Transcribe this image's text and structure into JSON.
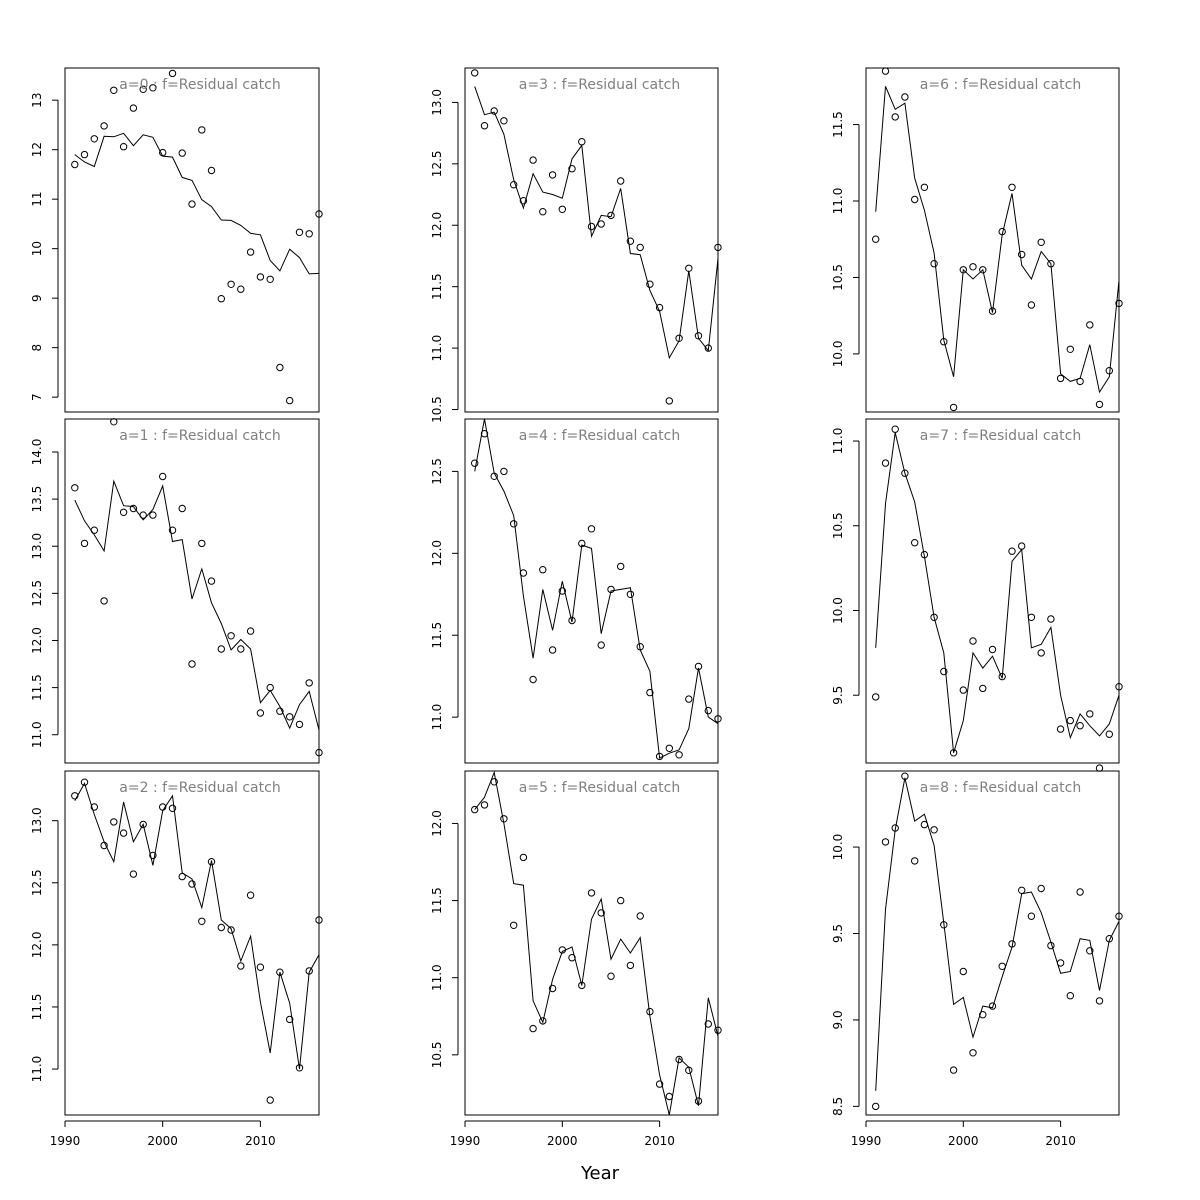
{
  "figure": {
    "xlabel": "Year"
  },
  "chart_data": [
    {
      "type": "line",
      "title": "a=0  :  f=Residual catch",
      "xlim": [
        1990,
        2016
      ],
      "ylim": [
        6.7,
        13.65
      ],
      "yticks": [
        7,
        8,
        9,
        10,
        11,
        12,
        13
      ],
      "x_start": 1991,
      "observed": [
        11.7,
        11.9,
        12.22,
        12.48,
        13.2,
        12.06,
        12.84,
        13.22,
        13.25,
        11.94,
        13.54,
        11.93,
        10.9,
        12.4,
        11.58,
        8.99,
        9.28,
        9.18,
        9.93,
        9.43,
        9.38,
        7.6,
        6.93,
        10.33,
        10.3,
        10.7
      ],
      "fitted": [
        11.9,
        11.75,
        11.66,
        12.27,
        12.26,
        12.33,
        12.08,
        12.3,
        12.25,
        11.87,
        11.85,
        11.44,
        11.38,
        10.99,
        10.85,
        10.58,
        10.57,
        10.47,
        10.31,
        10.28,
        9.76,
        9.55,
        9.99,
        9.82,
        9.49,
        9.5
      ]
    },
    {
      "type": "line",
      "title": "a=3  :  f=Residual catch",
      "xlim": [
        1990,
        2016
      ],
      "ylim": [
        10.48,
        13.28
      ],
      "yticks": [
        10.5,
        11.0,
        11.5,
        12.0,
        12.5,
        13.0
      ],
      "x_start": 1991,
      "observed": [
        13.24,
        12.81,
        12.93,
        12.85,
        12.33,
        12.2,
        12.53,
        12.11,
        12.41,
        12.13,
        12.46,
        12.68,
        11.99,
        12.01,
        12.08,
        12.36,
        11.87,
        11.82,
        11.52,
        11.33,
        10.57,
        11.08,
        11.65,
        11.1,
        11.0,
        11.82
      ],
      "fitted": [
        13.13,
        12.9,
        12.92,
        12.74,
        12.37,
        12.14,
        12.42,
        12.27,
        12.25,
        12.22,
        12.54,
        12.65,
        11.91,
        12.08,
        12.07,
        12.3,
        11.77,
        11.76,
        11.47,
        11.3,
        10.92,
        11.06,
        11.63,
        11.08,
        10.98,
        11.73
      ]
    },
    {
      "type": "line",
      "title": "a=6  :  f=Residual catch",
      "xlim": [
        1990,
        2016
      ],
      "ylim": [
        9.62,
        11.87
      ],
      "yticks": [
        10.0,
        10.5,
        11.0,
        11.5
      ],
      "x_start": 1991,
      "observed": [
        10.75,
        11.85,
        11.55,
        11.68,
        11.01,
        11.09,
        10.59,
        10.08,
        9.65,
        10.55,
        10.57,
        10.55,
        10.28,
        10.8,
        11.09,
        10.65,
        10.32,
        10.73,
        10.59,
        9.84,
        10.03,
        9.82,
        10.19,
        9.67,
        9.89,
        10.33
      ],
      "fitted": [
        10.93,
        11.75,
        11.6,
        11.64,
        11.15,
        10.94,
        10.66,
        10.09,
        9.85,
        10.55,
        10.49,
        10.55,
        10.27,
        10.78,
        11.05,
        10.58,
        10.49,
        10.67,
        10.59,
        9.87,
        9.82,
        9.84,
        10.06,
        9.75,
        9.85,
        10.48
      ]
    },
    {
      "type": "line",
      "title": "a=1  :  f=Residual catch",
      "xlim": [
        1990,
        2016
      ],
      "ylim": [
        10.7,
        14.35
      ],
      "yticks": [
        11.0,
        11.5,
        12.0,
        12.5,
        13.0,
        13.5,
        14.0
      ],
      "x_start": 1991,
      "observed": [
        13.62,
        13.03,
        13.17,
        12.42,
        14.32,
        13.36,
        13.4,
        13.33,
        13.33,
        13.74,
        13.17,
        13.4,
        11.75,
        13.03,
        12.63,
        11.91,
        12.05,
        11.91,
        12.1,
        11.23,
        11.5,
        11.25,
        11.19,
        11.11,
        11.55,
        10.81
      ],
      "fitted": [
        13.49,
        13.27,
        13.12,
        12.95,
        13.69,
        13.43,
        13.42,
        13.28,
        13.39,
        13.64,
        13.05,
        13.07,
        12.44,
        12.76,
        12.4,
        12.18,
        11.9,
        12.01,
        11.91,
        11.34,
        11.47,
        11.3,
        11.07,
        11.32,
        11.46,
        11.05
      ]
    },
    {
      "type": "line",
      "title": "a=4  :  f=Residual catch",
      "xlim": [
        1990,
        2016
      ],
      "ylim": [
        10.72,
        12.82
      ],
      "yticks": [
        11.0,
        11.5,
        12.0,
        12.5
      ],
      "x_start": 1991,
      "observed": [
        12.55,
        12.73,
        12.47,
        12.5,
        12.18,
        11.88,
        11.23,
        11.9,
        11.41,
        11.77,
        11.59,
        12.06,
        12.15,
        11.44,
        11.78,
        11.92,
        11.75,
        11.43,
        11.15,
        10.76,
        10.81,
        10.77,
        11.11,
        11.31,
        11.04,
        10.99
      ],
      "fitted": [
        12.5,
        12.82,
        12.49,
        12.38,
        12.23,
        11.74,
        11.36,
        11.78,
        11.53,
        11.83,
        11.58,
        12.05,
        12.03,
        11.51,
        11.77,
        11.78,
        11.79,
        11.41,
        11.28,
        10.75,
        10.78,
        10.8,
        10.93,
        11.3,
        11.0,
        10.96
      ]
    },
    {
      "type": "line",
      "title": "a=7  :  f=Residual catch",
      "xlim": [
        1990,
        2016
      ],
      "ylim": [
        9.1,
        11.13
      ],
      "yticks": [
        9.5,
        10.0,
        10.5,
        11.0
      ],
      "x_start": 1991,
      "observed": [
        9.49,
        10.87,
        11.07,
        10.81,
        10.4,
        10.33,
        9.96,
        9.64,
        9.16,
        9.53,
        9.82,
        9.54,
        9.77,
        9.61,
        10.35,
        10.38,
        9.96,
        9.75,
        9.95,
        9.3,
        9.35,
        9.32,
        9.39,
        9.07,
        9.27,
        9.55
      ],
      "fitted": [
        9.78,
        10.63,
        11.05,
        10.81,
        10.64,
        10.32,
        9.96,
        9.75,
        9.16,
        9.35,
        9.75,
        9.66,
        9.73,
        9.6,
        10.29,
        10.36,
        9.78,
        9.8,
        9.9,
        9.5,
        9.25,
        9.39,
        9.32,
        9.26,
        9.33,
        9.5
      ]
    },
    {
      "type": "line",
      "title": "a=2  :  f=Residual catch",
      "xlim": [
        1990,
        2016
      ],
      "ylim": [
        10.63,
        13.4
      ],
      "yticks": [
        11.0,
        11.5,
        12.0,
        12.5,
        13.0
      ],
      "x_start": 1991,
      "observed": [
        13.2,
        13.31,
        13.11,
        12.8,
        12.99,
        12.9,
        12.57,
        12.97,
        12.72,
        13.11,
        13.1,
        12.55,
        12.49,
        12.19,
        12.67,
        12.14,
        12.12,
        11.83,
        12.4,
        11.82,
        10.75,
        11.78,
        11.4,
        11.01,
        11.79,
        12.2
      ],
      "fitted": [
        13.16,
        13.3,
        13.05,
        12.83,
        12.67,
        13.15,
        12.83,
        12.97,
        12.64,
        13.08,
        13.2,
        12.58,
        12.53,
        12.3,
        12.68,
        12.2,
        12.13,
        11.87,
        12.07,
        11.54,
        11.13,
        11.78,
        11.53,
        11.0,
        11.78,
        11.92
      ]
    },
    {
      "type": "line",
      "title": "a=5  :  f=Residual catch",
      "xlim": [
        1990,
        2016
      ],
      "ylim": [
        10.11,
        12.34
      ],
      "yticks": [
        10.5,
        11.0,
        11.5,
        12.0
      ],
      "x_start": 1991,
      "observed": [
        12.09,
        12.12,
        12.27,
        12.03,
        11.34,
        11.78,
        10.67,
        10.72,
        10.93,
        11.18,
        11.13,
        10.95,
        11.55,
        11.42,
        11.01,
        11.5,
        11.08,
        11.4,
        10.78,
        10.31,
        10.23,
        10.47,
        10.4,
        10.2,
        10.7,
        10.66
      ],
      "fitted": [
        12.09,
        12.17,
        12.33,
        12.0,
        11.61,
        11.6,
        10.85,
        10.71,
        10.99,
        11.17,
        11.2,
        10.95,
        11.38,
        11.51,
        11.12,
        11.25,
        11.16,
        11.26,
        10.75,
        10.37,
        10.11,
        10.48,
        10.42,
        10.17,
        10.87,
        10.62
      ]
    },
    {
      "type": "line",
      "title": "a=8  :  f=Residual catch",
      "xlim": [
        1990,
        2016
      ],
      "ylim": [
        8.45,
        10.44
      ],
      "yticks": [
        8.5,
        9.0,
        9.5,
        10.0
      ],
      "x_start": 1991,
      "observed": [
        8.5,
        10.03,
        10.11,
        10.41,
        9.92,
        10.13,
        10.1,
        9.55,
        8.71,
        9.28,
        8.81,
        9.03,
        9.08,
        9.31,
        9.44,
        9.75,
        9.6,
        9.76,
        9.43,
        9.33,
        9.14,
        9.74,
        9.4,
        9.11,
        9.47,
        9.6
      ],
      "fitted": [
        8.59,
        9.64,
        10.1,
        10.4,
        10.15,
        10.19,
        10.01,
        9.56,
        9.09,
        9.13,
        8.9,
        9.08,
        9.07,
        9.25,
        9.42,
        9.73,
        9.74,
        9.62,
        9.45,
        9.27,
        9.28,
        9.47,
        9.46,
        9.17,
        9.46,
        9.57
      ]
    }
  ]
}
